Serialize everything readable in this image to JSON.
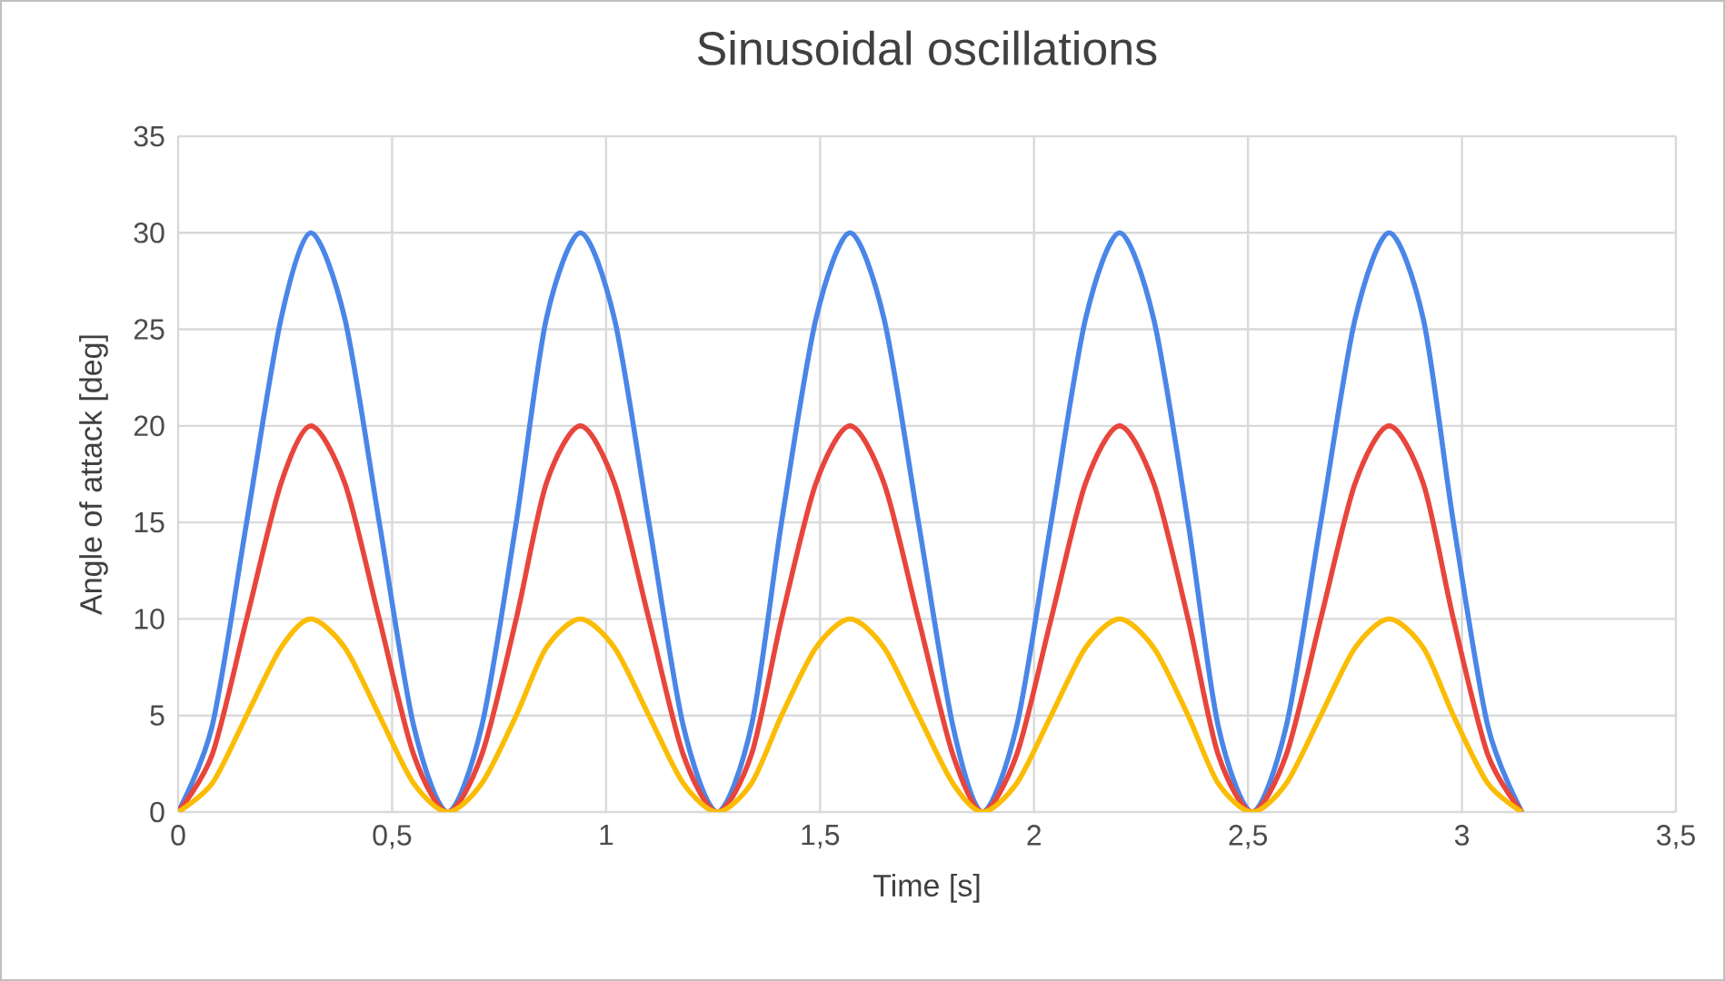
{
  "chart_data": {
    "type": "line",
    "title": "Sinusoidal oscillations",
    "xlabel": "Time [s]",
    "ylabel": "Angle of attack [deg]",
    "x": [
      0,
      0.08,
      0.16,
      0.24,
      0.31,
      0.39,
      0.47,
      0.55,
      0.63,
      0.71,
      0.79,
      0.86,
      0.94,
      1.02,
      1.1,
      1.18,
      1.26,
      1.34,
      1.41,
      1.49,
      1.57,
      1.65,
      1.73,
      1.81,
      1.88,
      1.96,
      2.04,
      2.12,
      2.2,
      2.28,
      2.36,
      2.43,
      2.51,
      2.59,
      2.67,
      2.75,
      2.83,
      2.91,
      2.98,
      3.06,
      3.14
    ],
    "series": [
      {
        "color": "#4a86e8",
        "values": [
          0,
          4.5,
          15,
          25.5,
          30,
          25.5,
          15,
          4.5,
          0,
          4.5,
          15,
          25.5,
          30,
          25.5,
          15,
          4.5,
          0,
          4.5,
          15,
          25.5,
          30,
          25.5,
          15,
          4.5,
          0,
          4.5,
          15,
          25.5,
          30,
          25.5,
          15,
          4.5,
          0,
          4.5,
          15,
          25.5,
          30,
          25.5,
          15,
          4.5,
          0
        ]
      },
      {
        "color": "#e8453c",
        "values": [
          0,
          3,
          10,
          17,
          20,
          17,
          10,
          3,
          0,
          3,
          10,
          17,
          20,
          17,
          10,
          3,
          0,
          3,
          10,
          17,
          20,
          17,
          10,
          3,
          0,
          3,
          10,
          17,
          20,
          17,
          10,
          3,
          0,
          3,
          10,
          17,
          20,
          17,
          10,
          3,
          0
        ]
      },
      {
        "color": "#fbbc04",
        "values": [
          0,
          1.5,
          5,
          8.5,
          10,
          8.5,
          5,
          1.5,
          0,
          1.5,
          5,
          8.5,
          10,
          8.5,
          5,
          1.5,
          0,
          1.5,
          5,
          8.5,
          10,
          8.5,
          5,
          1.5,
          0,
          1.5,
          5,
          8.5,
          10,
          8.5,
          5,
          1.5,
          0,
          1.5,
          5,
          8.5,
          10,
          8.5,
          5,
          1.5,
          0
        ]
      }
    ],
    "xlim": [
      0,
      3.5
    ],
    "ylim": [
      0,
      35
    ],
    "xticks": [
      0,
      {
        "value": 0.5,
        "label": "0,5"
      },
      1,
      {
        "value": 1.5,
        "label": "1,5"
      },
      2,
      {
        "value": 2.5,
        "label": "2,5"
      },
      3,
      {
        "value": 3.5,
        "label": "3,5"
      }
    ],
    "yticks": [
      0,
      5,
      10,
      15,
      20,
      25,
      30,
      35
    ],
    "grid": true,
    "marker": "none",
    "line_style": "solid"
  }
}
